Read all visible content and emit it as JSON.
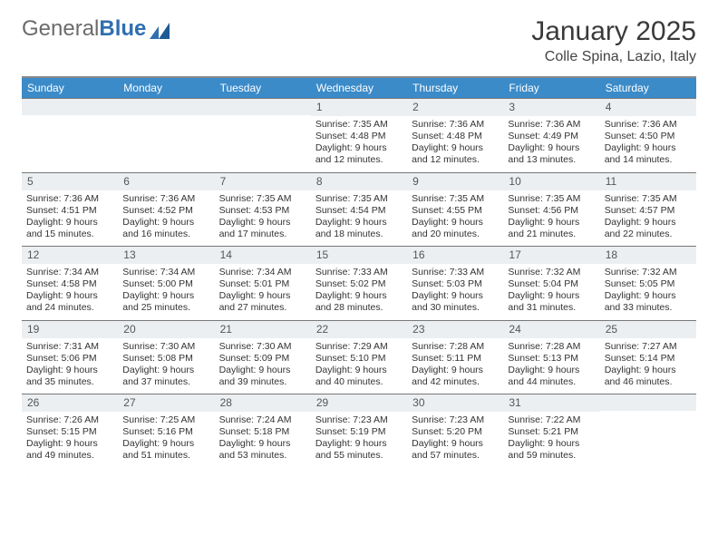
{
  "brand": {
    "text1": "General",
    "text2": "Blue"
  },
  "title": "January 2025",
  "location": "Colle Spina, Lazio, Italy",
  "colors": {
    "header_bg": "#3b8bc9",
    "header_text": "#ffffff",
    "daynum_bg": "#eceff1",
    "border": "#777777",
    "top_border": "#8a8a8a",
    "brand_gray": "#6b6b6b",
    "brand_blue": "#2f6fb0"
  },
  "daynames": [
    "Sunday",
    "Monday",
    "Tuesday",
    "Wednesday",
    "Thursday",
    "Friday",
    "Saturday"
  ],
  "weeks": [
    [
      null,
      null,
      null,
      {
        "n": "1",
        "sunrise": "7:35 AM",
        "sunset": "4:48 PM",
        "daylight": "9 hours and 12 minutes."
      },
      {
        "n": "2",
        "sunrise": "7:36 AM",
        "sunset": "4:48 PM",
        "daylight": "9 hours and 12 minutes."
      },
      {
        "n": "3",
        "sunrise": "7:36 AM",
        "sunset": "4:49 PM",
        "daylight": "9 hours and 13 minutes."
      },
      {
        "n": "4",
        "sunrise": "7:36 AM",
        "sunset": "4:50 PM",
        "daylight": "9 hours and 14 minutes."
      }
    ],
    [
      {
        "n": "5",
        "sunrise": "7:36 AM",
        "sunset": "4:51 PM",
        "daylight": "9 hours and 15 minutes."
      },
      {
        "n": "6",
        "sunrise": "7:36 AM",
        "sunset": "4:52 PM",
        "daylight": "9 hours and 16 minutes."
      },
      {
        "n": "7",
        "sunrise": "7:35 AM",
        "sunset": "4:53 PM",
        "daylight": "9 hours and 17 minutes."
      },
      {
        "n": "8",
        "sunrise": "7:35 AM",
        "sunset": "4:54 PM",
        "daylight": "9 hours and 18 minutes."
      },
      {
        "n": "9",
        "sunrise": "7:35 AM",
        "sunset": "4:55 PM",
        "daylight": "9 hours and 20 minutes."
      },
      {
        "n": "10",
        "sunrise": "7:35 AM",
        "sunset": "4:56 PM",
        "daylight": "9 hours and 21 minutes."
      },
      {
        "n": "11",
        "sunrise": "7:35 AM",
        "sunset": "4:57 PM",
        "daylight": "9 hours and 22 minutes."
      }
    ],
    [
      {
        "n": "12",
        "sunrise": "7:34 AM",
        "sunset": "4:58 PM",
        "daylight": "9 hours and 24 minutes."
      },
      {
        "n": "13",
        "sunrise": "7:34 AM",
        "sunset": "5:00 PM",
        "daylight": "9 hours and 25 minutes."
      },
      {
        "n": "14",
        "sunrise": "7:34 AM",
        "sunset": "5:01 PM",
        "daylight": "9 hours and 27 minutes."
      },
      {
        "n": "15",
        "sunrise": "7:33 AM",
        "sunset": "5:02 PM",
        "daylight": "9 hours and 28 minutes."
      },
      {
        "n": "16",
        "sunrise": "7:33 AM",
        "sunset": "5:03 PM",
        "daylight": "9 hours and 30 minutes."
      },
      {
        "n": "17",
        "sunrise": "7:32 AM",
        "sunset": "5:04 PM",
        "daylight": "9 hours and 31 minutes."
      },
      {
        "n": "18",
        "sunrise": "7:32 AM",
        "sunset": "5:05 PM",
        "daylight": "9 hours and 33 minutes."
      }
    ],
    [
      {
        "n": "19",
        "sunrise": "7:31 AM",
        "sunset": "5:06 PM",
        "daylight": "9 hours and 35 minutes."
      },
      {
        "n": "20",
        "sunrise": "7:30 AM",
        "sunset": "5:08 PM",
        "daylight": "9 hours and 37 minutes."
      },
      {
        "n": "21",
        "sunrise": "7:30 AM",
        "sunset": "5:09 PM",
        "daylight": "9 hours and 39 minutes."
      },
      {
        "n": "22",
        "sunrise": "7:29 AM",
        "sunset": "5:10 PM",
        "daylight": "9 hours and 40 minutes."
      },
      {
        "n": "23",
        "sunrise": "7:28 AM",
        "sunset": "5:11 PM",
        "daylight": "9 hours and 42 minutes."
      },
      {
        "n": "24",
        "sunrise": "7:28 AM",
        "sunset": "5:13 PM",
        "daylight": "9 hours and 44 minutes."
      },
      {
        "n": "25",
        "sunrise": "7:27 AM",
        "sunset": "5:14 PM",
        "daylight": "9 hours and 46 minutes."
      }
    ],
    [
      {
        "n": "26",
        "sunrise": "7:26 AM",
        "sunset": "5:15 PM",
        "daylight": "9 hours and 49 minutes."
      },
      {
        "n": "27",
        "sunrise": "7:25 AM",
        "sunset": "5:16 PM",
        "daylight": "9 hours and 51 minutes."
      },
      {
        "n": "28",
        "sunrise": "7:24 AM",
        "sunset": "5:18 PM",
        "daylight": "9 hours and 53 minutes."
      },
      {
        "n": "29",
        "sunrise": "7:23 AM",
        "sunset": "5:19 PM",
        "daylight": "9 hours and 55 minutes."
      },
      {
        "n": "30",
        "sunrise": "7:23 AM",
        "sunset": "5:20 PM",
        "daylight": "9 hours and 57 minutes."
      },
      {
        "n": "31",
        "sunrise": "7:22 AM",
        "sunset": "5:21 PM",
        "daylight": "9 hours and 59 minutes."
      },
      null
    ]
  ],
  "labels": {
    "sunrise": "Sunrise:",
    "sunset": "Sunset:",
    "daylight": "Daylight:"
  }
}
